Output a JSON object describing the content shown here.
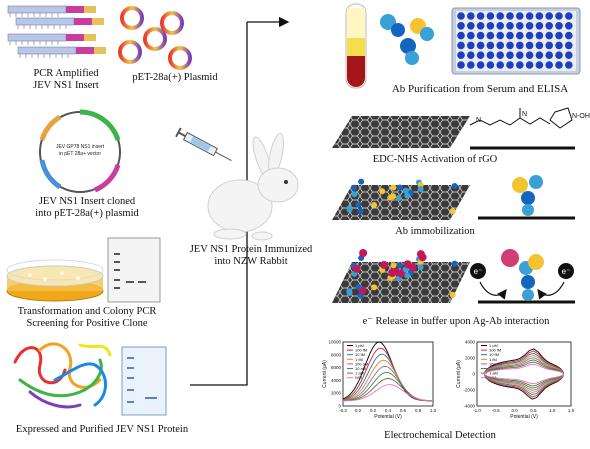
{
  "labels": {
    "pcr_insert": [
      "PCR Amplified",
      "JEV NS1 Insert"
    ],
    "plasmid": "pET-28a(+) Plasmid",
    "plasmid_map_line1": "JEV GP78 NS1 insert",
    "plasmid_map_line2": "in pET 28a+ vector",
    "cloned": [
      "JEV NS1 Insert cloned",
      "into pET-28a(+) plasmid"
    ],
    "transformation": [
      "Transformation and Colony PCR",
      "Screening for Positive Clone"
    ],
    "expressed": "Expressed and Purified JEV NS1 Protein",
    "rabbit": [
      "JEV NS1 Protein Immunized",
      "into NZW Rabbit"
    ],
    "ab_purification": "Ab Purification from Serum and ELISA",
    "edc_nhs": "EDC-NHS Activation of rGO",
    "ab_immobilization": "Ab immobilization",
    "e_release": "e⁻ Release in buffer upon Ag-Ab interaction",
    "electrochem": "Electrochemical Detection",
    "electron": "e⁻"
  },
  "chart_data": [
    {
      "type": "line",
      "xlabel": "Potential (V)",
      "ylabel": "Current (µA)",
      "ylim": [
        0,
        10000
      ],
      "xlim": [
        -0.2,
        1.0
      ],
      "x_ticks": [
        "-0.2",
        "0.0",
        "0.2",
        "0.4",
        "0.6",
        "0.8",
        "1.0"
      ],
      "y_ticks": [
        "0",
        "2000",
        "4000",
        "6000",
        "8000",
        "10000"
      ],
      "legend": [
        "1 pM",
        "100 fM",
        "10 fM",
        "1 fM",
        "100 aM",
        "10 aM",
        "1 aM",
        "NS1"
      ],
      "series_colors": [
        "#000000",
        "#d62728",
        "#1f77b4",
        "#ff7f0e",
        "#9467bd",
        "#2ca02c",
        "#8c564b",
        "#e377c2"
      ]
    },
    {
      "type": "line",
      "xlabel": "Potential (V)",
      "ylabel": "Current (µA)",
      "ylim": [
        -4000,
        4000
      ],
      "xlim": [
        -1.0,
        1.5
      ],
      "x_ticks": [
        "-1.0",
        "-0.5",
        "0.0",
        "0.5",
        "1.0",
        "1.5"
      ],
      "y_ticks": [
        "-4000",
        "-2000",
        "0",
        "2000",
        "4000"
      ],
      "legend": [
        "1 pM",
        "100 fM",
        "10 fM",
        "1 fM",
        "100 aM",
        "10 aM",
        "1 aM",
        "NS1"
      ],
      "series_colors": [
        "#000000",
        "#d62728",
        "#1f77b4",
        "#ff7f0e",
        "#9467bd",
        "#2ca02c",
        "#8c564b",
        "#e377c2"
      ]
    }
  ],
  "colors": {
    "arrow": "#111111",
    "plate": "#1f3fbf",
    "rgo": "#2b2b2b",
    "substrate": "#9aa3ad"
  }
}
